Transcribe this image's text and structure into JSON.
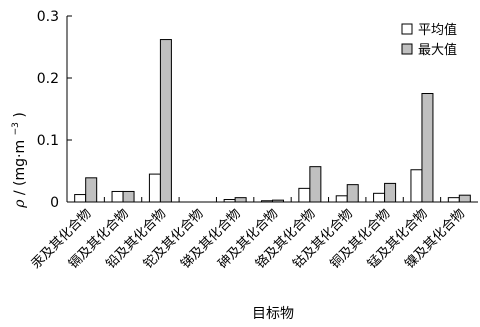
{
  "chart_data": {
    "type": "bar",
    "categories": [
      "汞及其化合物",
      "镉及其化合物",
      "铅及其化合物",
      "铊及其化合物",
      "锑及其化合物",
      "砷及其化合物",
      "铬及其化合物",
      "钴及其化合物",
      "铜及其化合物",
      "锰及其化合物",
      "镍及其化合物"
    ],
    "series": [
      {
        "name": "平均值",
        "values": [
          0.012,
          0.017,
          0.045,
          0.0,
          0.004,
          0.002,
          0.022,
          0.01,
          0.014,
          0.052,
          0.007
        ],
        "color": "#ffffff"
      },
      {
        "name": "最大值",
        "values": [
          0.039,
          0.017,
          0.262,
          0.0,
          0.007,
          0.003,
          0.057,
          0.028,
          0.03,
          0.175,
          0.011
        ],
        "color": "#c0c0c0"
      }
    ],
    "ylim": [
      0,
      0.3
    ],
    "yticks": [
      "0",
      "0.1",
      "0.2",
      "0.3"
    ],
    "ylabel_prefix": "ρ",
    "ylabel_unit": "/ (mg·m",
    "ylabel_sup": "−3",
    "ylabel_close": ")",
    "xlabel": "目标物",
    "legend_position": "top-right",
    "grid": false
  }
}
